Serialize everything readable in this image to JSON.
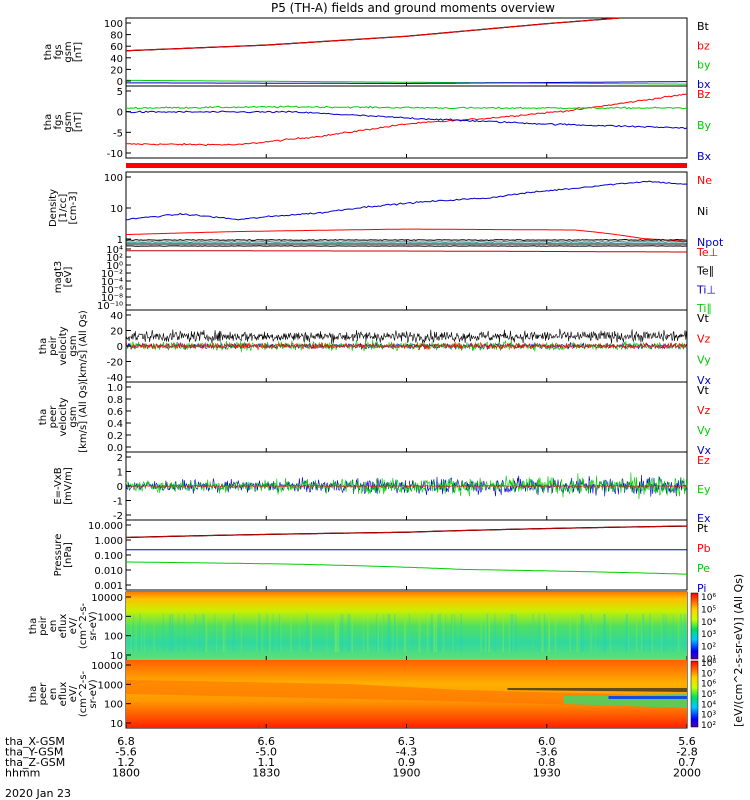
{
  "title": "P5 (TH-A) fields and ground moments overview",
  "date": "2020 Jan 23",
  "panels": [
    {
      "id": "fgs_gsm",
      "ylabel": [
        "tha",
        "fgs",
        "gsm",
        "[nT]"
      ],
      "ticks": [
        "100",
        "80",
        "60",
        "40",
        "20",
        "0"
      ],
      "legend": [
        {
          "t": "Bt",
          "c": "#000000"
        },
        {
          "t": "bz",
          "c": "#ff0000"
        },
        {
          "t": "by",
          "c": "#00cc00"
        },
        {
          "t": "bx",
          "c": "#0000cc"
        }
      ]
    },
    {
      "id": "fgs_gsm_zoom",
      "ylabel": [
        "tha",
        "fgs",
        "gsm",
        "[nT]"
      ],
      "ticks": [
        "5",
        "0",
        "-5",
        "-10"
      ],
      "legend": [
        {
          "t": "Bz",
          "c": "#ff0000"
        },
        {
          "t": "By",
          "c": "#00cc00"
        },
        {
          "t": "Bx",
          "c": "#0000cc"
        }
      ]
    },
    {
      "id": "density",
      "ylabel": [
        "Density",
        "[1/cc]",
        "[cm-3]"
      ],
      "ticks": [
        "100",
        "10",
        "1"
      ],
      "legend": [
        {
          "t": "Ne",
          "c": "#ff0000"
        },
        {
          "t": "Ni",
          "c": "#000000"
        },
        {
          "t": "Npot",
          "c": "#0000cc"
        }
      ]
    },
    {
      "id": "temperature",
      "ylabel": [
        "magt3",
        "[eV]"
      ],
      "ticks": [
        "10⁴",
        "10²",
        "10⁰",
        "10⁻²",
        "10⁻⁴",
        "10⁻⁶",
        "10⁻⁸",
        "10⁻¹⁰"
      ],
      "legend": [
        {
          "t": "Te⊥",
          "c": "#ff0000"
        },
        {
          "t": "Te∥",
          "c": "#000000"
        },
        {
          "t": "Ti⊥",
          "c": "#0000cc"
        },
        {
          "t": "Ti∥",
          "c": "#00cc00"
        }
      ]
    },
    {
      "id": "peir_velocity",
      "ylabel": [
        "tha",
        "peir",
        "velocity",
        "gsm",
        "[km/s] (All Qs)"
      ],
      "ticks": [
        "40",
        "20",
        "0",
        "-20",
        "-40"
      ],
      "legend": [
        {
          "t": "Vt",
          "c": "#000000"
        },
        {
          "t": "Vz",
          "c": "#ff0000"
        },
        {
          "t": "Vy",
          "c": "#00cc00"
        },
        {
          "t": "Vx",
          "c": "#0000cc"
        }
      ]
    },
    {
      "id": "peer_velocity",
      "ylabel": [
        "tha",
        "peer",
        "velocity",
        "gsm",
        "[km/s] (All Qs)"
      ],
      "ticks": [
        "1.0",
        "0.8",
        "0.6",
        "0.4",
        "0.2",
        "0.0"
      ],
      "legend": [
        {
          "t": "Vt",
          "c": "#000000"
        },
        {
          "t": "Vz",
          "c": "#ff0000"
        },
        {
          "t": "Vy",
          "c": "#00cc00"
        },
        {
          "t": "Vx",
          "c": "#0000cc"
        }
      ]
    },
    {
      "id": "efield",
      "ylabel": [
        "E=-VxB",
        "[mV/m]"
      ],
      "ticks": [
        "2",
        "1",
        "0",
        "-1",
        "-2"
      ],
      "legend": [
        {
          "t": "Ez",
          "c": "#ff0000"
        },
        {
          "t": "Ey",
          "c": "#00cc00"
        },
        {
          "t": "Ex",
          "c": "#0000cc"
        }
      ]
    },
    {
      "id": "pressure",
      "ylabel": [
        "Pressure",
        "[nPa]"
      ],
      "ticks": [
        "10.000",
        "1.000",
        "0.100",
        "0.010",
        "0.001"
      ],
      "legend": [
        {
          "t": "Pt",
          "c": "#000000"
        },
        {
          "t": "Pb",
          "c": "#ff0000"
        },
        {
          "t": "Pe",
          "c": "#00cc00"
        },
        {
          "t": "Pi",
          "c": "#0000cc"
        }
      ]
    },
    {
      "id": "peir_eflux",
      "ylabel": [
        "tha",
        "peir",
        "en",
        "eflux",
        "eV/",
        "(cm^2-s-",
        "sr-eV)"
      ],
      "ticks": [
        "10000",
        "1000",
        "100",
        "10"
      ]
    },
    {
      "id": "peer_eflux",
      "ylabel": [
        "tha",
        "peer",
        "en",
        "eflux",
        "eV/",
        "(cm^2-s-",
        "sr-eV)"
      ],
      "ticks": [
        "10000",
        "1000",
        "100",
        "10"
      ]
    }
  ],
  "colorbar": {
    "title": "[eV/(cm^2-s-sr-eV)] (All Qs)",
    "ion_ticks": [
      "10⁶",
      "10⁵",
      "10⁴",
      "10³",
      "10²",
      "10¹"
    ],
    "elec_ticks": [
      "10⁸",
      "10⁷",
      "10⁶",
      "10⁵",
      "10⁴",
      "10³",
      "10²"
    ]
  },
  "chart_data": {
    "type": "line",
    "title": "P5 (TH-A) fields and ground moments overview",
    "x_label": "hhmm",
    "x_ticks": [
      "1800",
      "1830",
      "1900",
      "1930",
      "2000"
    ],
    "x_minutes": [
      1080,
      1110,
      1140,
      1170,
      1200
    ],
    "ephemeris": [
      {
        "label": "tha_X-GSM",
        "values": [
          "6.8",
          "6.6",
          "6.3",
          "6.0",
          "5.6"
        ]
      },
      {
        "label": "tha_Y-GSM",
        "values": [
          "-5.6",
          "-5.0",
          "-4.3",
          "-3.6",
          "-2.8"
        ]
      },
      {
        "label": "tha_Z-GSM",
        "values": [
          "1.2",
          "1.1",
          "0.9",
          "0.8",
          "0.7"
        ]
      },
      {
        "label": "hhmm",
        "values": [
          "1800",
          "1830",
          "1900",
          "1930",
          "2000"
        ]
      }
    ],
    "series": [
      {
        "panel": "fgs_gsm",
        "name": "Bt",
        "x": [
          0,
          0.25,
          0.5,
          0.75,
          0.88
        ],
        "y": [
          51,
          60,
          74,
          94,
          103
        ],
        "ylim": [
          -5,
          103
        ]
      },
      {
        "panel": "fgs_gsm",
        "name": "bz",
        "x": [
          0,
          0.25,
          0.5,
          0.75,
          0.88
        ],
        "y": [
          51,
          60,
          74,
          94,
          103
        ],
        "ylim": [
          -5,
          103
        ]
      },
      {
        "panel": "fgs_gsm",
        "name": "by",
        "x": [
          0,
          0.5,
          1
        ],
        "y": [
          4,
          1,
          -2
        ],
        "ylim": [
          -5,
          103
        ]
      },
      {
        "panel": "fgs_gsm",
        "name": "bx",
        "x": [
          0,
          0.5,
          1
        ],
        "y": [
          0,
          -1,
          2
        ],
        "ylim": [
          -5,
          103
        ]
      },
      {
        "panel": "fgs_gsm_zoom",
        "name": "Bz",
        "x": [
          0,
          0.2,
          0.35,
          0.5,
          0.65,
          0.8,
          1
        ],
        "y": [
          -8.5,
          -8.7,
          -6.5,
          -3.5,
          -2,
          0,
          4
        ],
        "ylim": [
          -12,
          6
        ]
      },
      {
        "panel": "fgs_gsm_zoom",
        "name": "By",
        "x": [
          0,
          0.3,
          0.6,
          1
        ],
        "y": [
          0.5,
          0.8,
          0.5,
          0.5
        ],
        "ylim": [
          -12,
          6
        ]
      },
      {
        "panel": "fgs_gsm_zoom",
        "name": "Bx",
        "x": [
          0,
          0.3,
          0.5,
          0.75,
          1
        ],
        "y": [
          -0.5,
          -0.5,
          -2,
          -3.5,
          -4.5
        ],
        "ylim": [
          -12,
          6
        ]
      },
      {
        "panel": "density",
        "name": "Ne",
        "x": [
          0,
          0.2,
          0.5,
          0.8,
          0.92,
          1
        ],
        "y": [
          2,
          2.5,
          3,
          2.8,
          1.5,
          1.2
        ],
        "ylim": [
          1,
          200
        ],
        "log": true
      },
      {
        "panel": "density",
        "name": "Npot",
        "x": [
          0,
          0.1,
          0.2,
          0.35,
          0.5,
          0.65,
          0.8,
          0.93,
          1
        ],
        "y": [
          6,
          9,
          6,
          10,
          20,
          30,
          60,
          100,
          80
        ],
        "ylim": [
          1,
          200
        ],
        "log": true
      },
      {
        "panel": "temperature",
        "name": "Te_perp",
        "x": [
          0,
          0.5,
          1
        ],
        "y": [
          3000,
          2500,
          1500
        ],
        "ylim": [
          1e-10,
          100000.0
        ],
        "log": true
      },
      {
        "panel": "pressure",
        "name": "Pt",
        "x": [
          0,
          0.5,
          1
        ],
        "y": [
          1.0,
          2.0,
          4.5
        ],
        "ylim": [
          0.001,
          10
        ],
        "log": true
      },
      {
        "panel": "pressure",
        "name": "Pb",
        "x": [
          0,
          0.5,
          1
        ],
        "y": [
          1.0,
          2.0,
          4.5
        ],
        "ylim": [
          0.001,
          10
        ],
        "log": true
      },
      {
        "panel": "pressure",
        "name": "Pi",
        "x": [
          0,
          0.5,
          1
        ],
        "y": [
          0.2,
          0.2,
          0.2
        ],
        "ylim": [
          0.001,
          10
        ],
        "log": true
      },
      {
        "panel": "pressure",
        "name": "Pe",
        "x": [
          0,
          0.3,
          0.6,
          1
        ],
        "y": [
          0.04,
          0.03,
          0.015,
          0.008
        ],
        "ylim": [
          0.001,
          10
        ],
        "log": true
      }
    ]
  }
}
